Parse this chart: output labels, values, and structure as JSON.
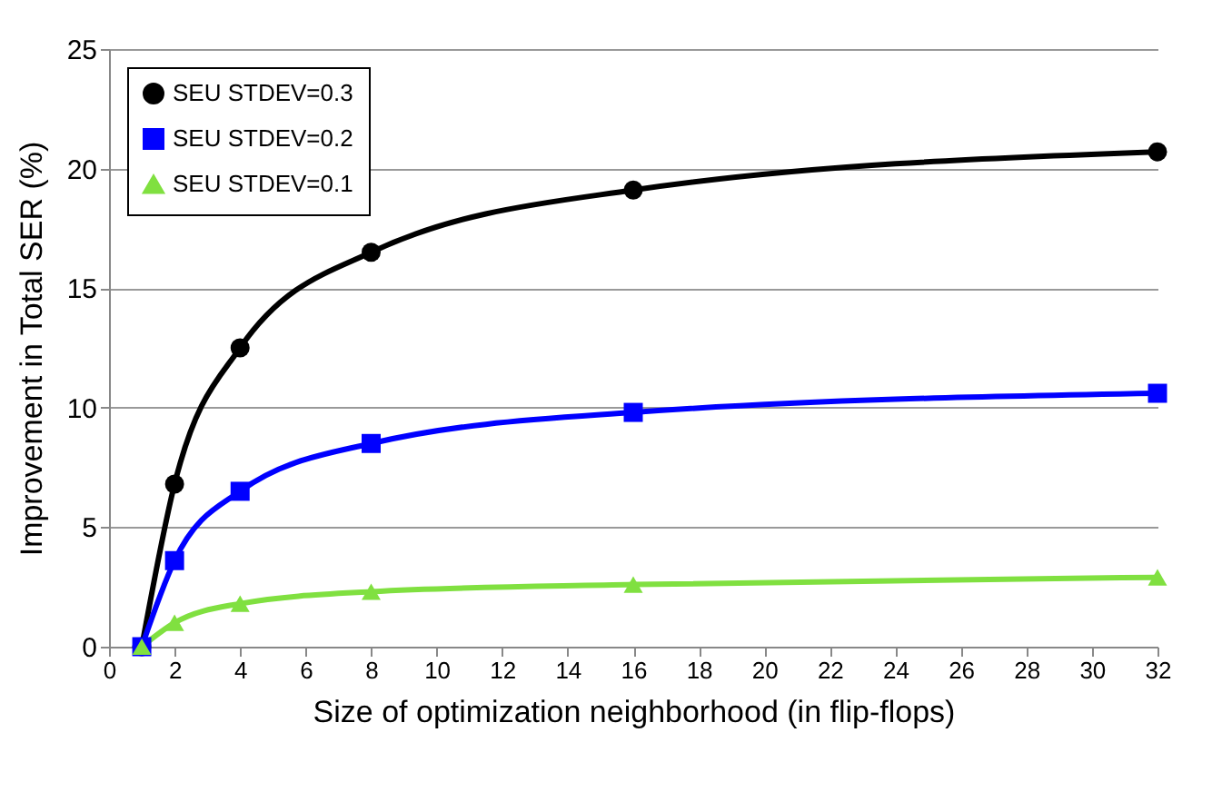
{
  "chart_data": {
    "type": "line",
    "xlabel": "Size of optimization neighborhood (in flip-flops)",
    "ylabel": "Improvement in Total SER (%)",
    "x": [
      1,
      2,
      4,
      8,
      16,
      32
    ],
    "series": [
      {
        "name": "SEU STDEV=0.3",
        "color": "#000000",
        "marker": "circle",
        "values": [
          0,
          6.8,
          12.5,
          16.5,
          19.1,
          20.7
        ]
      },
      {
        "name": "SEU STDEV=0.2",
        "color": "#0000ff",
        "marker": "square",
        "values": [
          0,
          3.6,
          6.5,
          8.5,
          9.8,
          10.6
        ]
      },
      {
        "name": "SEU STDEV=0.1",
        "color": "#80e040",
        "marker": "triangle",
        "values": [
          0,
          1.0,
          1.8,
          2.3,
          2.6,
          2.9
        ]
      }
    ],
    "xlim": [
      0,
      32
    ],
    "xticks": [
      0,
      2,
      4,
      6,
      8,
      10,
      12,
      14,
      16,
      18,
      20,
      22,
      24,
      26,
      28,
      30,
      32
    ],
    "ylim": [
      0,
      25
    ],
    "yticks": [
      0,
      5,
      10,
      15,
      20,
      25
    ],
    "grid": "y",
    "legend": "top left",
    "line_style": "solid"
  }
}
